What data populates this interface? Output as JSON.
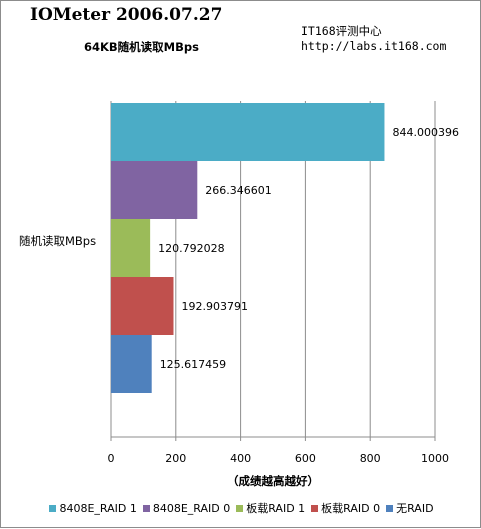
{
  "header": {
    "title": "IOMeter 2006.07.27",
    "subtitle": "64KB随机读取MBps",
    "source": "IT168评测中心",
    "url": "http://labs.it168.com"
  },
  "chart_data": {
    "type": "bar",
    "orientation": "horizontal",
    "title": "IOMeter 2006.07.27",
    "subtitle": "64KB随机读取MBps",
    "categories": [
      "随机读取MBps"
    ],
    "xlabel": "（成绩越高越好）",
    "ylabel": "",
    "xlim": [
      0,
      1000
    ],
    "xticks": [
      0,
      200,
      400,
      600,
      800,
      1000
    ],
    "grid": "vertical",
    "legend_position": "bottom",
    "series": [
      {
        "name": "8408E_RAID 1",
        "values": [
          844.000396
        ],
        "label": "844.000396",
        "color": "#4bacc6"
      },
      {
        "name": "8408E_RAID 0",
        "values": [
          266.346601
        ],
        "label": "266.346601",
        "color": "#8064a2"
      },
      {
        "name": "板载RAID 1",
        "values": [
          120.792028
        ],
        "label": "120.792028",
        "color": "#9bbb59"
      },
      {
        "name": "板载RAID 0",
        "values": [
          192.903791
        ],
        "label": "192.903791",
        "color": "#c0504d"
      },
      {
        "name": "无RAID",
        "values": [
          125.617459
        ],
        "label": "125.617459",
        "color": "#4f81bd"
      }
    ]
  }
}
